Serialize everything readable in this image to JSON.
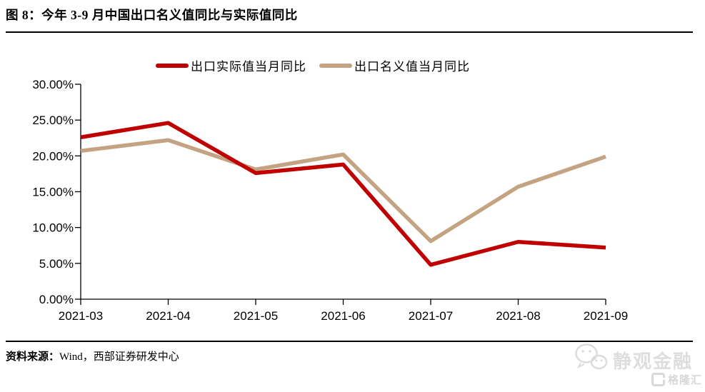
{
  "title": "图 8：今年 3-9 月中国出口名义值同比与实际值同比",
  "legend": [
    {
      "label": "出口实际值当月同比",
      "color": "#c00000"
    },
    {
      "label": "出口名义值当月同比",
      "color": "#c3a381"
    }
  ],
  "chart_data": {
    "type": "line",
    "title": "图 8：今年 3-9 月中国出口名义值同比与实际值同比",
    "categories": [
      "2021-03",
      "2021-04",
      "2021-05",
      "2021-06",
      "2021-07",
      "2021-08",
      "2021-09"
    ],
    "series": [
      {
        "name": "出口实际值当月同比",
        "color": "#c00000",
        "values": [
          22.6,
          24.6,
          17.6,
          18.8,
          4.8,
          8.0,
          7.2
        ]
      },
      {
        "name": "出口名义值当月同比",
        "color": "#c3a381",
        "values": [
          20.7,
          22.2,
          18.1,
          20.2,
          8.1,
          15.7,
          19.9
        ]
      }
    ],
    "xlabel": "",
    "ylabel": "",
    "ylim": [
      0,
      30
    ],
    "y_tick_step": 5,
    "y_ticks": [
      "0.00%",
      "5.00%",
      "10.00%",
      "15.00%",
      "20.00%",
      "25.00%",
      "30.00%"
    ],
    "grid": false,
    "legend_position": "top"
  },
  "footer": {
    "source_label": "资料来源：",
    "source_text": "Wind，西部证券研发中心"
  },
  "watermark": {
    "wechat_name": "静观金融",
    "platform_name": "格隆汇",
    "color": "#dcdcdc"
  }
}
